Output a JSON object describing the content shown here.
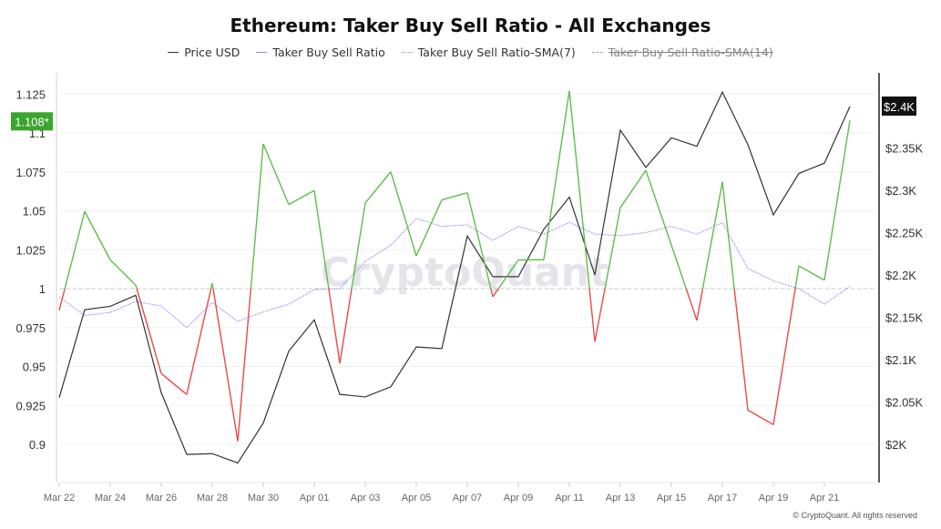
{
  "title": "Ethereum: Taker Buy Sell Ratio - All Exchanges",
  "legend": [
    {
      "label": "Price USD",
      "color": "#333333",
      "style": "solid"
    },
    {
      "label": "Taker Buy Sell Ratio",
      "color": "#8c84f0",
      "style": "solid"
    },
    {
      "label": "Taker Buy Sell Ratio-SMA(7)",
      "color": "#aaaaaa",
      "style": "dotted"
    },
    {
      "label": "Taker Buy Sell Ratio-SMA(14)",
      "color": "#aaaaaa",
      "style": "dashed",
      "disabled": true
    }
  ],
  "watermark": "CryptoQuant",
  "footer": "© CryptoQuant. All rights reserved",
  "chart_data": {
    "type": "line",
    "title": "Ethereum: Taker Buy Sell Ratio - All Exchanges",
    "x": [
      "Mar 22",
      "Mar 23",
      "Mar 24",
      "Mar 25",
      "Mar 26",
      "Mar 27",
      "Mar 28",
      "Mar 29",
      "Mar 30",
      "Mar 31",
      "Apr 01",
      "Apr 02",
      "Apr 03",
      "Apr 04",
      "Apr 05",
      "Apr 06",
      "Apr 07",
      "Apr 08",
      "Apr 09",
      "Apr 10",
      "Apr 11",
      "Apr 12",
      "Apr 13",
      "Apr 14",
      "Apr 15",
      "Apr 16",
      "Apr 17",
      "Apr 18",
      "Apr 19",
      "Apr 20",
      "Apr 21",
      "Apr 22"
    ],
    "x_tick_labels": [
      "Mar 22",
      "Mar 24",
      "Mar 26",
      "Mar 28",
      "Mar 30",
      "Apr 01",
      "Apr 03",
      "Apr 05",
      "Apr 07",
      "Apr 09",
      "Apr 11",
      "Apr 13",
      "Apr 15",
      "Apr 17",
      "Apr 19",
      "Apr 21"
    ],
    "y_left": {
      "ticks": [
        "1.125",
        "1.1",
        "1.075",
        "1.05",
        "1.025",
        "1",
        "0.975",
        "0.95",
        "0.925",
        "0.9"
      ],
      "range": [
        0.9,
        1.125
      ],
      "current_label": "1.108*",
      "current_color": "#3aa52e"
    },
    "y_right": {
      "ticks": [
        "$2.4K",
        "$2.35K",
        "$2.3K",
        "$2.25K",
        "$2.2K",
        "$2.15K",
        "$2.1K",
        "$2.05K",
        "$2K"
      ],
      "range": [
        2000,
        2400
      ],
      "current_label": "$2.4K"
    },
    "reference_line": 1,
    "colors": {
      "above": "#5cbf4a",
      "below": "#e84a4a",
      "price": "#333333",
      "sma7": "#9d96f5"
    },
    "series": [
      {
        "name": "Price USD",
        "axis": "right",
        "values": [
          2055,
          2159,
          2163,
          2176,
          2061,
          1988,
          1989,
          1978,
          2025,
          2110,
          2147,
          2059,
          2056,
          2068,
          2115,
          2113,
          2246,
          2198,
          2198,
          2254,
          2292,
          2200,
          2371,
          2327,
          2362,
          2352,
          2416,
          2354,
          2271,
          2320,
          2332,
          2399
        ]
      },
      {
        "name": "Taker Buy Sell Ratio",
        "axis": "left",
        "values": [
          0.986,
          1.0496,
          1.0185,
          1.0023,
          0.9455,
          0.932,
          1.0035,
          0.902,
          1.093,
          1.054,
          1.063,
          0.952,
          1.055,
          1.075,
          1.021,
          1.057,
          1.0616,
          0.9948,
          1.0184,
          1.0186,
          1.127,
          0.966,
          1.052,
          1.076,
          1.028,
          0.9796,
          1.0686,
          0.922,
          0.9126,
          1.0146,
          1.0054,
          1.108
        ]
      },
      {
        "name": "Taker Buy Sell Ratio-SMA(7)",
        "axis": "left",
        "values": [
          0.9947,
          0.9827,
          0.9847,
          0.9918,
          0.9888,
          0.975,
          0.991,
          0.979,
          0.985,
          0.99,
          0.9994,
          1.0,
          1.0176,
          1.0278,
          1.045,
          1.04,
          1.041,
          1.031,
          1.04,
          1.035,
          1.0425,
          1.035,
          1.034,
          1.036,
          1.04,
          1.035,
          1.0424,
          1.013,
          1.005,
          1.0,
          0.99,
          1.0014
        ]
      }
    ]
  }
}
